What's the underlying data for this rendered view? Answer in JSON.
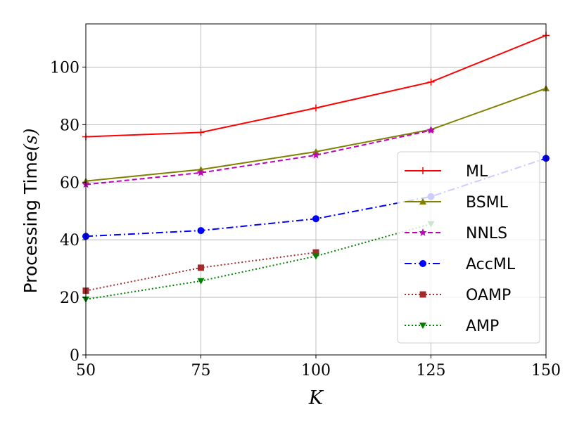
{
  "chart_data": {
    "type": "line",
    "title": "",
    "xlabel": "K",
    "ylabel_text": "Processing Time",
    "ylabel_unit": "(s)",
    "x": [
      50,
      75,
      100,
      125,
      150
    ],
    "xlim": [
      50,
      150
    ],
    "ylim": [
      0,
      115
    ],
    "x_ticks": [
      50,
      75,
      100,
      125,
      150
    ],
    "y_ticks": [
      0,
      20,
      40,
      60,
      80,
      100
    ],
    "grid": true,
    "legend_position": "center-right",
    "series": [
      {
        "name": "ML",
        "values": [
          75.8,
          77.3,
          85.8,
          94.8,
          111.0
        ],
        "color": "#ff0000",
        "marker": "plus",
        "dash": "solid"
      },
      {
        "name": "BSML",
        "values": [
          60.4,
          64.4,
          70.6,
          78.3,
          92.6
        ],
        "color": "#808000",
        "marker": "triangle-up",
        "dash": "solid"
      },
      {
        "name": "NNLS",
        "values": [
          59.2,
          63.3,
          69.4,
          78.0,
          null
        ],
        "color": "#bf00bf",
        "marker": "star",
        "dash": "dashed"
      },
      {
        "name": "AccML",
        "values": [
          41.2,
          43.2,
          47.3,
          55.0,
          68.3
        ],
        "color": "#0000ff",
        "marker": "circle",
        "dash": "dashdot"
      },
      {
        "name": "OAMP",
        "values": [
          22.3,
          30.3,
          35.6,
          null,
          null
        ],
        "color": "#a52a2a",
        "marker": "square",
        "dash": "dotted"
      },
      {
        "name": "AMP",
        "values": [
          19.3,
          25.7,
          34.3,
          45.5,
          null
        ],
        "color": "#008000",
        "marker": "triangle-down",
        "dash": "dotted"
      }
    ]
  }
}
